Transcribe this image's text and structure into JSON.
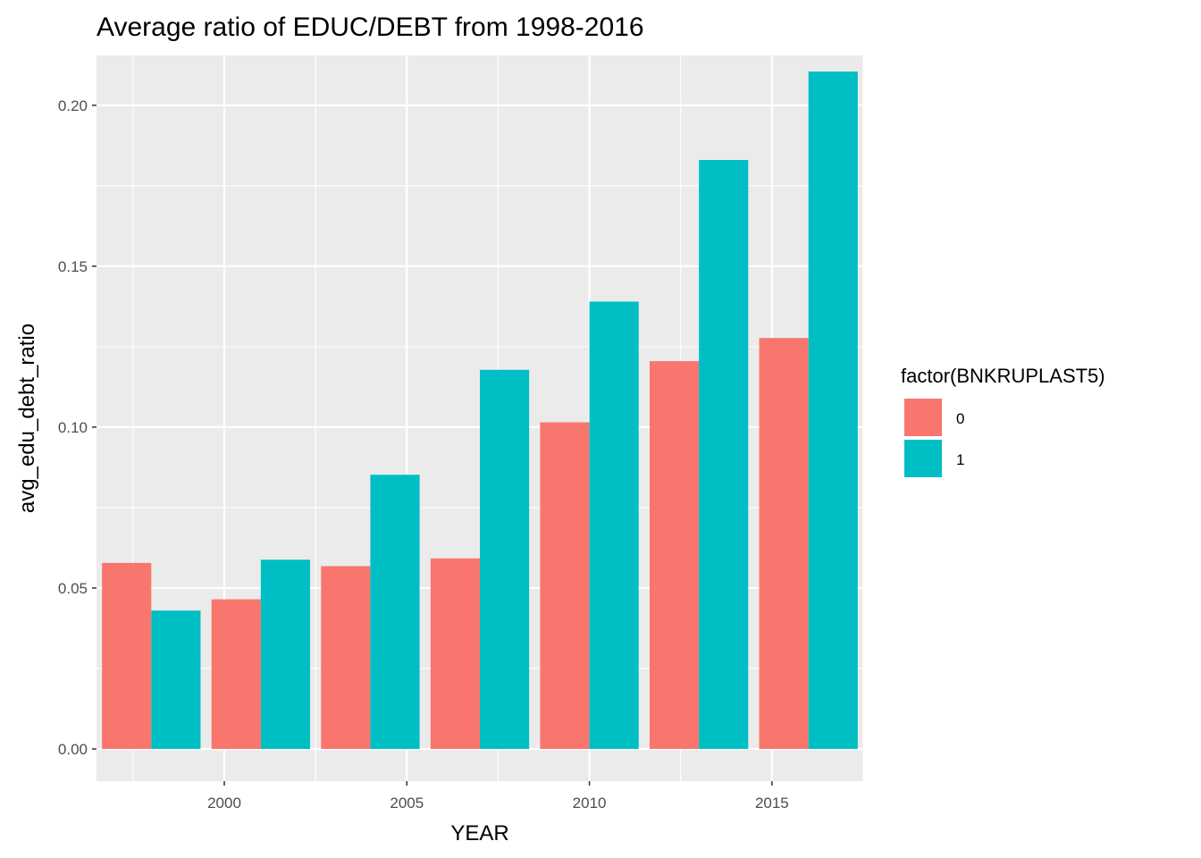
{
  "chart_data": {
    "type": "bar",
    "title": "Average ratio of EDUC/DEBT from 1998-2016",
    "xlabel": "YEAR",
    "ylabel": "avg_edu_debt_ratio",
    "x": [
      1998,
      2001,
      2004,
      2007,
      2010,
      2013,
      2016
    ],
    "series": [
      {
        "name": "0",
        "color": "#F8766D",
        "values": [
          0.0578,
          0.0465,
          0.0568,
          0.0592,
          0.1015,
          0.1205,
          0.1277
        ]
      },
      {
        "name": "1",
        "color": "#00BFC4",
        "values": [
          0.043,
          0.0588,
          0.0852,
          0.1178,
          0.139,
          0.183,
          0.2105
        ]
      }
    ],
    "xlim": [
      1996.5,
      2017.5
    ],
    "ylim": [
      -0.01,
      0.2155
    ],
    "x_ticks": [
      2000,
      2005,
      2010,
      2015
    ],
    "x_tick_labels": [
      "2000",
      "2005",
      "2010",
      "2015"
    ],
    "y_ticks": [
      0,
      0.05,
      0.1,
      0.15,
      0.2
    ],
    "y_tick_labels": [
      "0.00",
      "0.05",
      "0.10",
      "0.15",
      "0.20"
    ],
    "bar_width_years": 2.7,
    "grid": true,
    "panel_background": "#EBEBEB",
    "legend": {
      "title": "factor(BNKRUPLAST5)",
      "position": "right",
      "entries": [
        "0",
        "1"
      ]
    }
  }
}
